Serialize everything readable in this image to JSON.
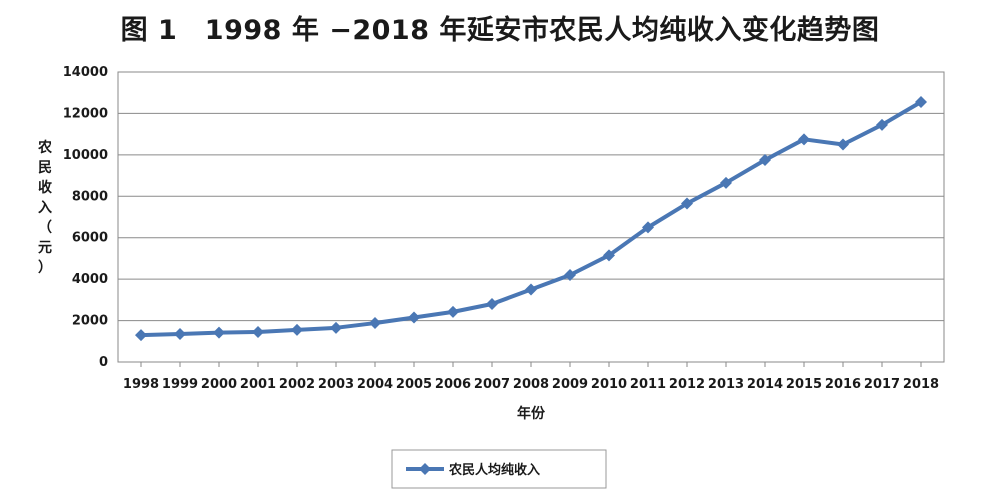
{
  "figure": {
    "title": "图 1　1998 年 −2018 年延安市农民人均纯收入变化趋势图"
  },
  "chart_data": {
    "type": "line",
    "title": "图 1　1998 年 −2018 年延安市农民人均纯收入变化趋势图",
    "xlabel": "年份",
    "ylabel": "农民收入（元）",
    "ylim": [
      0,
      14000
    ],
    "yticks": [
      0,
      2000,
      4000,
      6000,
      8000,
      10000,
      12000,
      14000
    ],
    "grid": true,
    "legend_position": "bottom",
    "series_color": "#4a77b4",
    "categories": [
      "1998",
      "1999",
      "2000",
      "2001",
      "2002",
      "2003",
      "2004",
      "2005",
      "2006",
      "2007",
      "2008",
      "2009",
      "2010",
      "2011",
      "2012",
      "2013",
      "2014",
      "2015",
      "2016",
      "2017",
      "2018"
    ],
    "series": [
      {
        "name": "农民人均纯收入",
        "values": [
          1300,
          1350,
          1420,
          1450,
          1550,
          1650,
          1880,
          2150,
          2420,
          2800,
          3500,
          4200,
          5150,
          6500,
          7650,
          8650,
          9750,
          10750,
          10500,
          11450,
          12550
        ]
      }
    ]
  }
}
